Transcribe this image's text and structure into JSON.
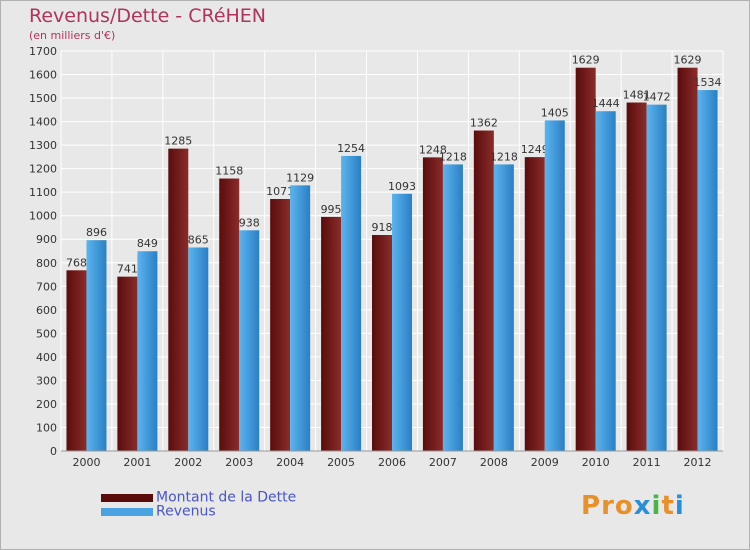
{
  "header": {
    "title": "Revenus/Dette - CRéHEN",
    "subtitle": "(en milliers d'€)"
  },
  "logo": {
    "text": "Proxiti",
    "colors": [
      "#e8902a",
      "#e8902a",
      "#e8902a",
      "#2a8fd6",
      "#4db34d",
      "#e8902a",
      "#2a8fd6"
    ]
  },
  "colors": {
    "debt": "#7a2020",
    "revenue": "#4aa3e0",
    "grid": "#ffffff",
    "axis_text": "#333333"
  },
  "chart_data": {
    "type": "bar",
    "title": "Revenus/Dette - CRéHEN",
    "ylabel": "(en milliers d'€)",
    "xlabel": "",
    "categories": [
      "2000",
      "2001",
      "2002",
      "2003",
      "2004",
      "2005",
      "2006",
      "2007",
      "2008",
      "2009",
      "2010",
      "2011",
      "2012"
    ],
    "yticks": [
      0,
      100,
      200,
      300,
      400,
      500,
      600,
      700,
      800,
      900,
      1000,
      1100,
      1200,
      1300,
      1400,
      1500,
      1600,
      1700
    ],
    "ylim": [
      0,
      1700
    ],
    "grid": true,
    "legend_position": "bottom-left",
    "series": [
      {
        "name": "Montant de la Dette",
        "values": [
          768,
          741,
          1285,
          1158,
          1071,
          995,
          918,
          1248,
          1362,
          1249,
          1629,
          1481,
          1629
        ]
      },
      {
        "name": "Revenus",
        "values": [
          896,
          849,
          865,
          938,
          1129,
          1254,
          1093,
          1218,
          1218,
          1405,
          1444,
          1472,
          1534
        ]
      }
    ]
  }
}
